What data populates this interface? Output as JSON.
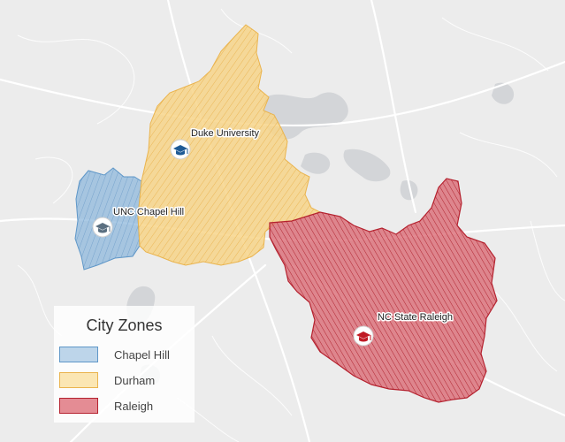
{
  "map": {
    "zones": [
      {
        "id": "chapel-hill",
        "name": "Chapel Hill",
        "fill": "#8fb8dc",
        "stroke": "#5f97c8"
      },
      {
        "id": "durham",
        "name": "Durham",
        "fill": "#f7d58a",
        "stroke": "#eab44e"
      },
      {
        "id": "raleigh",
        "name": "Raleigh",
        "fill": "#db6b75",
        "stroke": "#b5222f"
      }
    ],
    "markers": [
      {
        "label": "Duke University",
        "color": "#1e5a96",
        "icon": "graduation-cap-icon"
      },
      {
        "label": "UNC Chapel Hill",
        "color": "#5b6f80",
        "icon": "graduation-cap-icon"
      },
      {
        "label": "NC State Raleigh",
        "color": "#c01a24",
        "icon": "graduation-cap-icon"
      }
    ]
  },
  "legend": {
    "title": "City Zones",
    "items": [
      {
        "label": "Chapel Hill"
      },
      {
        "label": "Durham"
      },
      {
        "label": "Raleigh"
      }
    ]
  }
}
